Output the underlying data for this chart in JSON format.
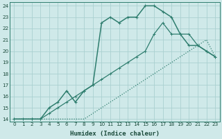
{
  "xlabel": "Humidex (Indice chaleur)",
  "bg_color": "#cfe9e9",
  "grid_color": "#aad0d0",
  "line_color": "#2e7d6e",
  "xlim": [
    -0.5,
    23.5
  ],
  "ylim": [
    13.8,
    24.3
  ],
  "xticks": [
    0,
    1,
    2,
    3,
    4,
    5,
    6,
    7,
    8,
    9,
    10,
    11,
    12,
    13,
    14,
    15,
    16,
    17,
    18,
    19,
    20,
    21,
    22,
    23
  ],
  "yticks": [
    14,
    15,
    16,
    17,
    18,
    19,
    20,
    21,
    22,
    23,
    24
  ],
  "line1_x": [
    0,
    1,
    2,
    3,
    4,
    5,
    6,
    7,
    8,
    9,
    10,
    11,
    12,
    13,
    14,
    15,
    16,
    17,
    18,
    19,
    20,
    21,
    22,
    23
  ],
  "line1_y": [
    14.0,
    14.0,
    14.0,
    14.0,
    14.0,
    14.0,
    14.0,
    14.0,
    14.0,
    14.5,
    15.0,
    15.5,
    16.0,
    16.5,
    17.0,
    17.5,
    18.0,
    18.5,
    19.0,
    19.5,
    20.0,
    20.5,
    21.0,
    19.5
  ],
  "line2_x": [
    0,
    1,
    2,
    3,
    4,
    5,
    6,
    7,
    8,
    9,
    10,
    11,
    12,
    13,
    14,
    15,
    16,
    17,
    18,
    19,
    20,
    21,
    22,
    23
  ],
  "line2_y": [
    14.0,
    14.0,
    14.0,
    14.0,
    14.5,
    15.0,
    15.5,
    16.0,
    16.5,
    17.0,
    17.5,
    18.0,
    18.5,
    19.0,
    19.5,
    20.0,
    21.5,
    22.5,
    21.5,
    21.5,
    21.5,
    20.5,
    20.0,
    19.5
  ],
  "line3_x": [
    0,
    2,
    3,
    4,
    5,
    6,
    7,
    8,
    9,
    10,
    11,
    12,
    13,
    14,
    15,
    16,
    17,
    18,
    19,
    20,
    21,
    22,
    23
  ],
  "line3_y": [
    14.0,
    14.0,
    14.0,
    15.0,
    15.5,
    16.5,
    15.5,
    16.5,
    17.0,
    22.5,
    23.0,
    22.5,
    23.0,
    23.0,
    24.0,
    24.0,
    23.5,
    23.0,
    21.5,
    20.5,
    20.5,
    20.0,
    19.5
  ]
}
